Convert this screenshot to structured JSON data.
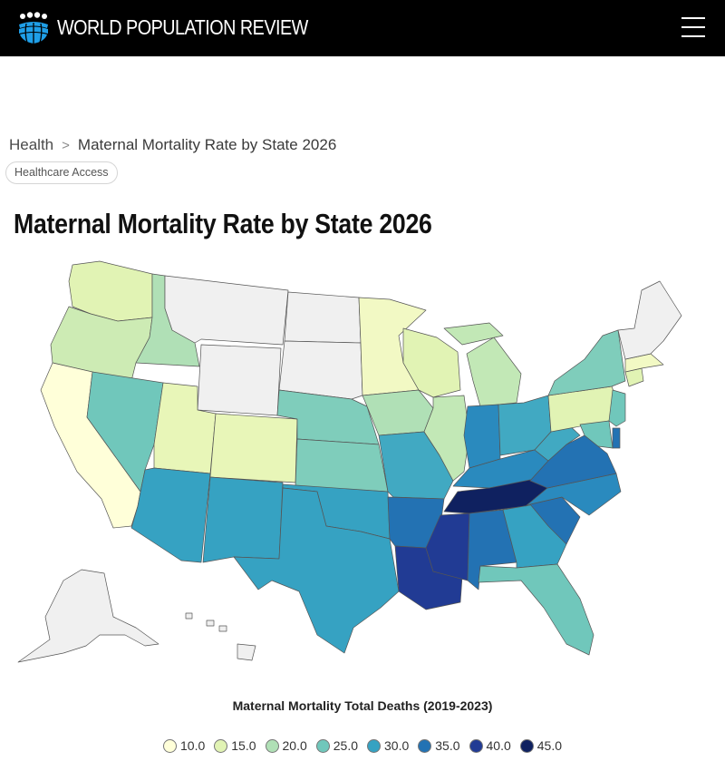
{
  "header": {
    "brand": "WORLD POPULATION REVIEW",
    "logo_icon": "globe-people-icon",
    "menu_icon": "hamburger-menu-icon"
  },
  "breadcrumb": {
    "parent": "Health",
    "separator": ">",
    "current": "Maternal Mortality Rate by State 2026"
  },
  "tag": "Healthcare Access",
  "page_title": "Maternal Mortality Rate by State 2026",
  "map": {
    "legend_title": "Maternal Mortality Total Deaths (2019-2023)",
    "legend": [
      {
        "label": "10.0",
        "color": "#ffffd9"
      },
      {
        "label": "15.0",
        "color": "#e1f3b4"
      },
      {
        "label": "20.0",
        "color": "#b0e0b6"
      },
      {
        "label": "25.0",
        "color": "#70c7bb"
      },
      {
        "label": "30.0",
        "color": "#36a2c2"
      },
      {
        "label": "35.0",
        "color": "#2372b3"
      },
      {
        "label": "40.0",
        "color": "#213b94"
      },
      {
        "label": "45.0",
        "color": "#0f2160"
      }
    ],
    "no_data_color": "#f0f0f0",
    "states": [
      {
        "name": "WA",
        "color": "#e1f3b4"
      },
      {
        "name": "OR",
        "color": "#cdebb4"
      },
      {
        "name": "CA",
        "color": "#ffffd9"
      },
      {
        "name": "ID",
        "color": "#b0e0b6"
      },
      {
        "name": "NV",
        "color": "#70c7bb"
      },
      {
        "name": "MT",
        "color": "#f0f0f0"
      },
      {
        "name": "WY",
        "color": "#f0f0f0"
      },
      {
        "name": "UT",
        "color": "#e8f6b8"
      },
      {
        "name": "AZ",
        "color": "#36a2c2"
      },
      {
        "name": "CO",
        "color": "#e8f6b8"
      },
      {
        "name": "NM",
        "color": "#36a2c2"
      },
      {
        "name": "ND",
        "color": "#f0f0f0"
      },
      {
        "name": "SD",
        "color": "#f0f0f0"
      },
      {
        "name": "NE",
        "color": "#7fcdbb"
      },
      {
        "name": "KS",
        "color": "#7fcdbb"
      },
      {
        "name": "OK",
        "color": "#36a2c2"
      },
      {
        "name": "TX",
        "color": "#36a2c2"
      },
      {
        "name": "MN",
        "color": "#f2f9c4"
      },
      {
        "name": "IA",
        "color": "#b0e0b6"
      },
      {
        "name": "MO",
        "color": "#41a9c2"
      },
      {
        "name": "AR",
        "color": "#2372b3"
      },
      {
        "name": "LA",
        "color": "#213b94"
      },
      {
        "name": "WI",
        "color": "#e1f3b4"
      },
      {
        "name": "IL",
        "color": "#c2e8b6"
      },
      {
        "name": "MS",
        "color": "#213b94"
      },
      {
        "name": "MI",
        "color": "#c2e8b6"
      },
      {
        "name": "IN",
        "color": "#2a8abe"
      },
      {
        "name": "KY",
        "color": "#2a8abe"
      },
      {
        "name": "TN",
        "color": "#0f2160"
      },
      {
        "name": "AL",
        "color": "#2372b3"
      },
      {
        "name": "OH",
        "color": "#41a9c2"
      },
      {
        "name": "GA",
        "color": "#36a2c2"
      },
      {
        "name": "FL",
        "color": "#70c7bb"
      },
      {
        "name": "SC",
        "color": "#2372b3"
      },
      {
        "name": "NC",
        "color": "#2a8abe"
      },
      {
        "name": "VA",
        "color": "#2372b3"
      },
      {
        "name": "WV",
        "color": "#41a9c2"
      },
      {
        "name": "PA",
        "color": "#e1f3b4"
      },
      {
        "name": "NY",
        "color": "#7fcdbb"
      },
      {
        "name": "NJ",
        "color": "#70c7bb"
      },
      {
        "name": "DE",
        "color": "#2372b3"
      },
      {
        "name": "MD",
        "color": "#70c7bb"
      },
      {
        "name": "CT",
        "color": "#e1f3b4"
      },
      {
        "name": "MA",
        "color": "#f2f9c4"
      },
      {
        "name": "NE-States",
        "color": "#f0f0f0"
      },
      {
        "name": "AK",
        "color": "#f0f0f0"
      },
      {
        "name": "HI",
        "color": "#f0f0f0"
      }
    ]
  }
}
